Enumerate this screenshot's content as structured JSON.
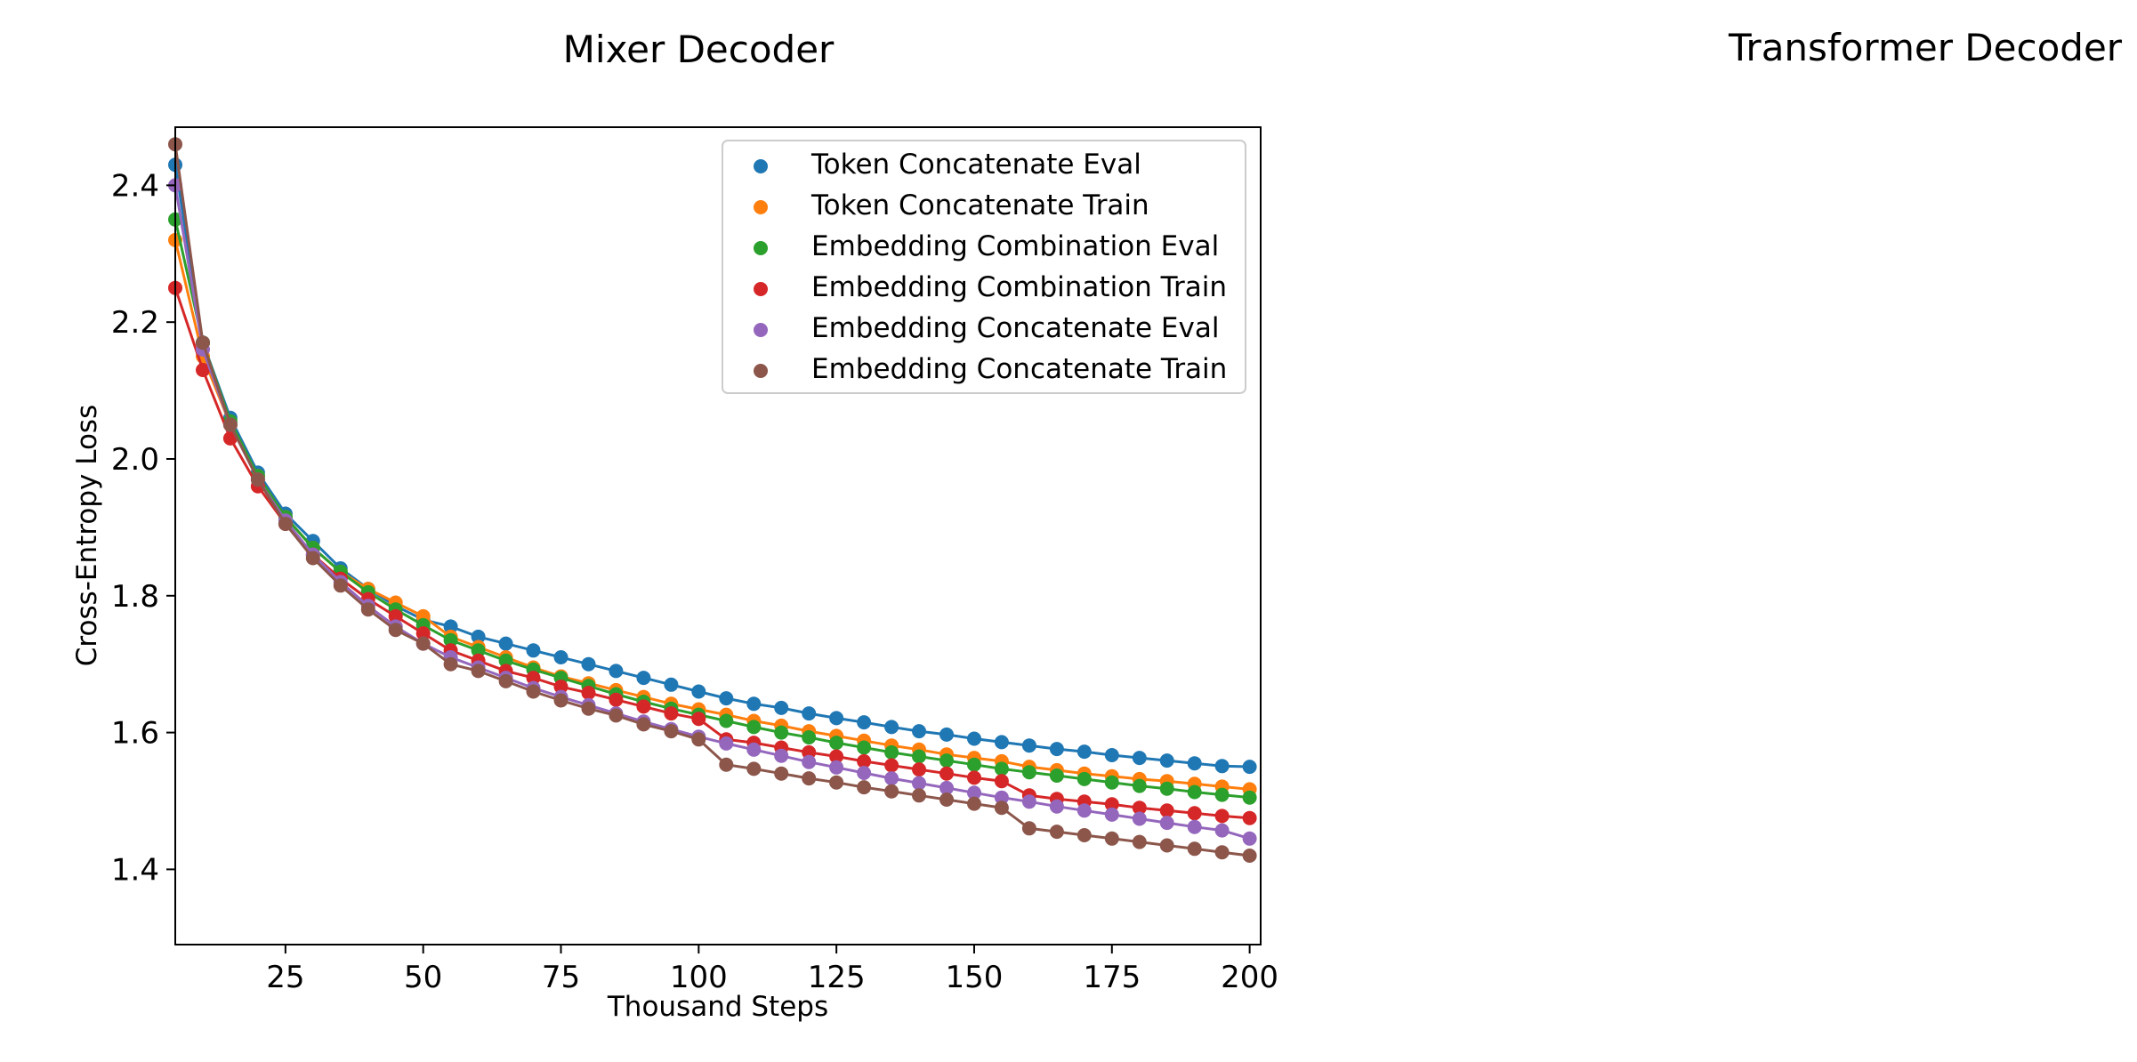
{
  "titles": {
    "left": "Mixer Decoder",
    "right": "Transformer Decoder"
  },
  "chart_data": [
    {
      "type": "scatter",
      "title": "Mixer Decoder",
      "xlabel": "Thousand Steps",
      "ylabel": "Cross-Entropy Loss",
      "xlim": [
        5,
        202
      ],
      "ylim": [
        1.29,
        2.485
      ],
      "xticks": [
        25,
        50,
        75,
        100,
        125,
        150,
        175,
        200
      ],
      "yticks": [
        1.4,
        1.6,
        1.8,
        2.0,
        2.2,
        2.4
      ],
      "grid": false,
      "legend_position": "top-right",
      "series": [
        {
          "name": "Token Concatenate Eval",
          "color": "#1f77b4",
          "x": [
            5,
            10,
            15,
            20,
            25,
            30,
            35,
            40,
            45,
            50,
            55,
            60,
            65,
            70,
            75,
            80,
            85,
            90,
            95,
            100,
            105,
            110,
            115,
            120,
            125,
            130,
            135,
            140,
            145,
            150,
            155,
            160,
            165,
            170,
            175,
            180,
            185,
            190,
            195,
            200
          ],
          "y": [
            2.43,
            2.17,
            2.06,
            1.98,
            1.92,
            1.88,
            1.84,
            1.81,
            1.785,
            1.765,
            1.755,
            1.74,
            1.73,
            1.72,
            1.71,
            1.7,
            1.69,
            1.68,
            1.67,
            1.66,
            1.65,
            1.642,
            1.636,
            1.628,
            1.621,
            1.615,
            1.608,
            1.602,
            1.597,
            1.591,
            1.586,
            1.581,
            1.576,
            1.572,
            1.567,
            1.563,
            1.559,
            1.555,
            1.551,
            1.55
          ]
        },
        {
          "name": "Token Concatenate Train",
          "color": "#ff7f0e",
          "x": [
            5,
            10,
            15,
            20,
            25,
            30,
            35,
            40,
            45,
            50,
            55,
            60,
            65,
            70,
            75,
            80,
            85,
            90,
            95,
            100,
            105,
            110,
            115,
            120,
            125,
            130,
            135,
            140,
            145,
            150,
            155,
            160,
            165,
            170,
            175,
            180,
            185,
            190,
            195,
            200
          ],
          "y": [
            2.32,
            2.15,
            2.05,
            1.975,
            1.915,
            1.87,
            1.835,
            1.81,
            1.79,
            1.77,
            1.74,
            1.725,
            1.71,
            1.695,
            1.682,
            1.672,
            1.662,
            1.652,
            1.642,
            1.634,
            1.626,
            1.617,
            1.61,
            1.602,
            1.595,
            1.588,
            1.581,
            1.575,
            1.568,
            1.563,
            1.558,
            1.55,
            1.545,
            1.54,
            1.536,
            1.532,
            1.529,
            1.525,
            1.521,
            1.517
          ]
        },
        {
          "name": "Embedding Combination Eval",
          "color": "#2ca02c",
          "x": [
            5,
            10,
            15,
            20,
            25,
            30,
            35,
            40,
            45,
            50,
            55,
            60,
            65,
            70,
            75,
            80,
            85,
            90,
            95,
            100,
            105,
            110,
            115,
            120,
            125,
            130,
            135,
            140,
            145,
            150,
            155,
            160,
            165,
            170,
            175,
            180,
            185,
            190,
            195,
            200
          ],
          "y": [
            2.35,
            2.17,
            2.055,
            1.975,
            1.915,
            1.87,
            1.835,
            1.805,
            1.78,
            1.757,
            1.735,
            1.72,
            1.705,
            1.692,
            1.68,
            1.668,
            1.656,
            1.645,
            1.635,
            1.626,
            1.617,
            1.608,
            1.6,
            1.593,
            1.585,
            1.578,
            1.571,
            1.565,
            1.559,
            1.553,
            1.547,
            1.542,
            1.537,
            1.532,
            1.527,
            1.522,
            1.518,
            1.513,
            1.509,
            1.505
          ]
        },
        {
          "name": "Embedding Combination Train",
          "color": "#d62728",
          "x": [
            5,
            10,
            15,
            20,
            25,
            30,
            35,
            40,
            45,
            50,
            55,
            60,
            65,
            70,
            75,
            80,
            85,
            90,
            95,
            100,
            105,
            110,
            115,
            120,
            125,
            130,
            135,
            140,
            145,
            150,
            155,
            160,
            165,
            170,
            175,
            180,
            185,
            190,
            195,
            200
          ],
          "y": [
            2.25,
            2.13,
            2.03,
            1.96,
            1.905,
            1.86,
            1.825,
            1.795,
            1.77,
            1.745,
            1.72,
            1.705,
            1.69,
            1.68,
            1.667,
            1.658,
            1.648,
            1.638,
            1.628,
            1.62,
            1.59,
            1.585,
            1.578,
            1.571,
            1.565,
            1.558,
            1.552,
            1.546,
            1.54,
            1.534,
            1.529,
            1.508,
            1.503,
            1.499,
            1.495,
            1.49,
            1.486,
            1.482,
            1.478,
            1.475
          ]
        },
        {
          "name": "Embedding Concatenate Eval",
          "color": "#9467bd",
          "x": [
            5,
            10,
            15,
            20,
            25,
            30,
            35,
            40,
            45,
            50,
            55,
            60,
            65,
            70,
            75,
            80,
            85,
            90,
            95,
            100,
            105,
            110,
            115,
            120,
            125,
            130,
            135,
            140,
            145,
            150,
            155,
            160,
            165,
            170,
            175,
            180,
            185,
            190,
            195,
            200
          ],
          "y": [
            2.4,
            2.16,
            2.05,
            1.97,
            1.91,
            1.86,
            1.82,
            1.785,
            1.755,
            1.73,
            1.71,
            1.695,
            1.68,
            1.665,
            1.652,
            1.64,
            1.628,
            1.616,
            1.605,
            1.594,
            1.584,
            1.575,
            1.566,
            1.557,
            1.549,
            1.541,
            1.533,
            1.526,
            1.519,
            1.512,
            1.505,
            1.499,
            1.492,
            1.486,
            1.48,
            1.474,
            1.468,
            1.462,
            1.457,
            1.445
          ]
        },
        {
          "name": "Embedding Concatenate Train",
          "color": "#8c564b",
          "x": [
            5,
            10,
            15,
            20,
            25,
            30,
            35,
            40,
            45,
            50,
            55,
            60,
            65,
            70,
            75,
            80,
            85,
            90,
            95,
            100,
            105,
            110,
            115,
            120,
            125,
            130,
            135,
            140,
            145,
            150,
            155,
            160,
            165,
            170,
            175,
            180,
            185,
            190,
            195,
            200
          ],
          "y": [
            2.46,
            2.17,
            2.05,
            1.97,
            1.905,
            1.855,
            1.815,
            1.78,
            1.75,
            1.73,
            1.7,
            1.69,
            1.675,
            1.66,
            1.647,
            1.635,
            1.625,
            1.612,
            1.602,
            1.59,
            1.553,
            1.547,
            1.54,
            1.533,
            1.527,
            1.52,
            1.514,
            1.508,
            1.502,
            1.496,
            1.49,
            1.46,
            1.455,
            1.45,
            1.445,
            1.44,
            1.435,
            1.43,
            1.425,
            1.42
          ]
        }
      ]
    }
  ]
}
